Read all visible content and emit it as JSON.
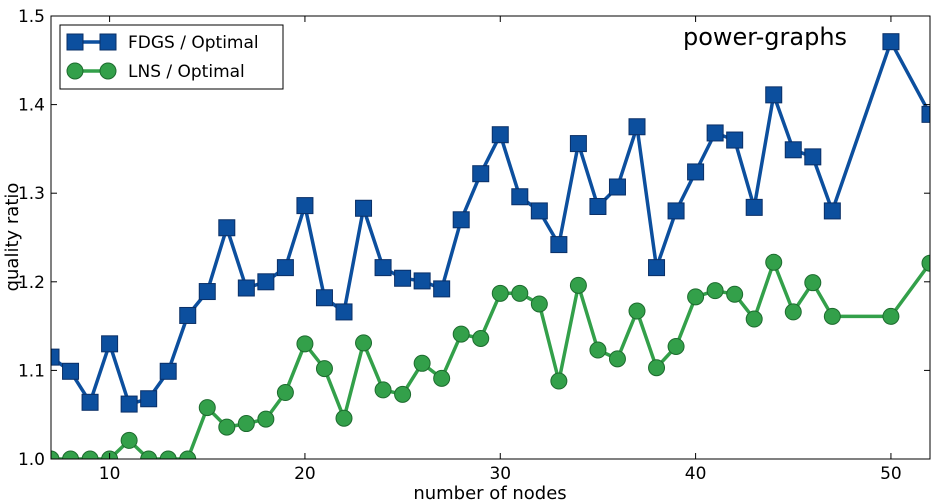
{
  "chart_data": {
    "type": "line",
    "xlabel": "number of nodes",
    "ylabel": "quality ratio",
    "xlim": [
      7,
      52
    ],
    "ylim": [
      1.0,
      1.5
    ],
    "xticks": [
      10,
      20,
      30,
      40,
      50
    ],
    "yticks": [
      1.0,
      1.1,
      1.2,
      1.3,
      1.4,
      1.5
    ],
    "xtick_labels": [
      "10",
      "20",
      "30",
      "40",
      "50"
    ],
    "ytick_labels": [
      "1.0",
      "1.1",
      "1.2",
      "1.3",
      "1.4",
      "1.5"
    ],
    "annotation": "power-graphs",
    "grid": false,
    "legend_position": "top-left",
    "series": [
      {
        "name": "FDGS / Optimal",
        "color": "#0c4f9e",
        "marker": "square",
        "x": [
          7,
          8,
          9,
          10,
          11,
          12,
          13,
          14,
          15,
          16,
          17,
          18,
          19,
          20,
          21,
          22,
          23,
          24,
          25,
          26,
          27,
          28,
          29,
          30,
          31,
          32,
          33,
          34,
          35,
          36,
          37,
          38,
          39,
          40,
          41,
          42,
          43,
          44,
          45,
          46,
          47,
          50,
          52
        ],
        "y": [
          1.115,
          1.099,
          1.064,
          1.13,
          1.062,
          1.068,
          1.099,
          1.162,
          1.189,
          1.261,
          1.193,
          1.2,
          1.216,
          1.286,
          1.182,
          1.166,
          1.283,
          1.216,
          1.204,
          1.201,
          1.192,
          1.27,
          1.322,
          1.366,
          1.296,
          1.28,
          1.242,
          1.356,
          1.285,
          1.307,
          1.375,
          1.216,
          1.28,
          1.324,
          1.368,
          1.36,
          1.284,
          1.411,
          1.349,
          1.341,
          1.28,
          1.471,
          1.389
        ]
      },
      {
        "name": "LNS / Optimal",
        "color": "#33a04a",
        "marker": "circle",
        "x": [
          7,
          8,
          9,
          10,
          11,
          12,
          13,
          14,
          15,
          16,
          17,
          18,
          19,
          20,
          21,
          22,
          23,
          24,
          25,
          26,
          27,
          28,
          29,
          30,
          31,
          32,
          33,
          34,
          35,
          36,
          37,
          38,
          39,
          40,
          41,
          42,
          43,
          44,
          45,
          46,
          47,
          50,
          52
        ],
        "y": [
          1.0,
          1.0,
          1.0,
          1.0,
          1.021,
          1.0,
          1.0,
          1.0,
          1.058,
          1.036,
          1.04,
          1.045,
          1.075,
          1.13,
          1.102,
          1.046,
          1.131,
          1.078,
          1.073,
          1.108,
          1.091,
          1.141,
          1.136,
          1.187,
          1.187,
          1.175,
          1.088,
          1.196,
          1.123,
          1.113,
          1.167,
          1.103,
          1.127,
          1.183,
          1.19,
          1.186,
          1.158,
          1.222,
          1.166,
          1.199,
          1.161,
          1.161,
          1.221
        ]
      }
    ]
  }
}
